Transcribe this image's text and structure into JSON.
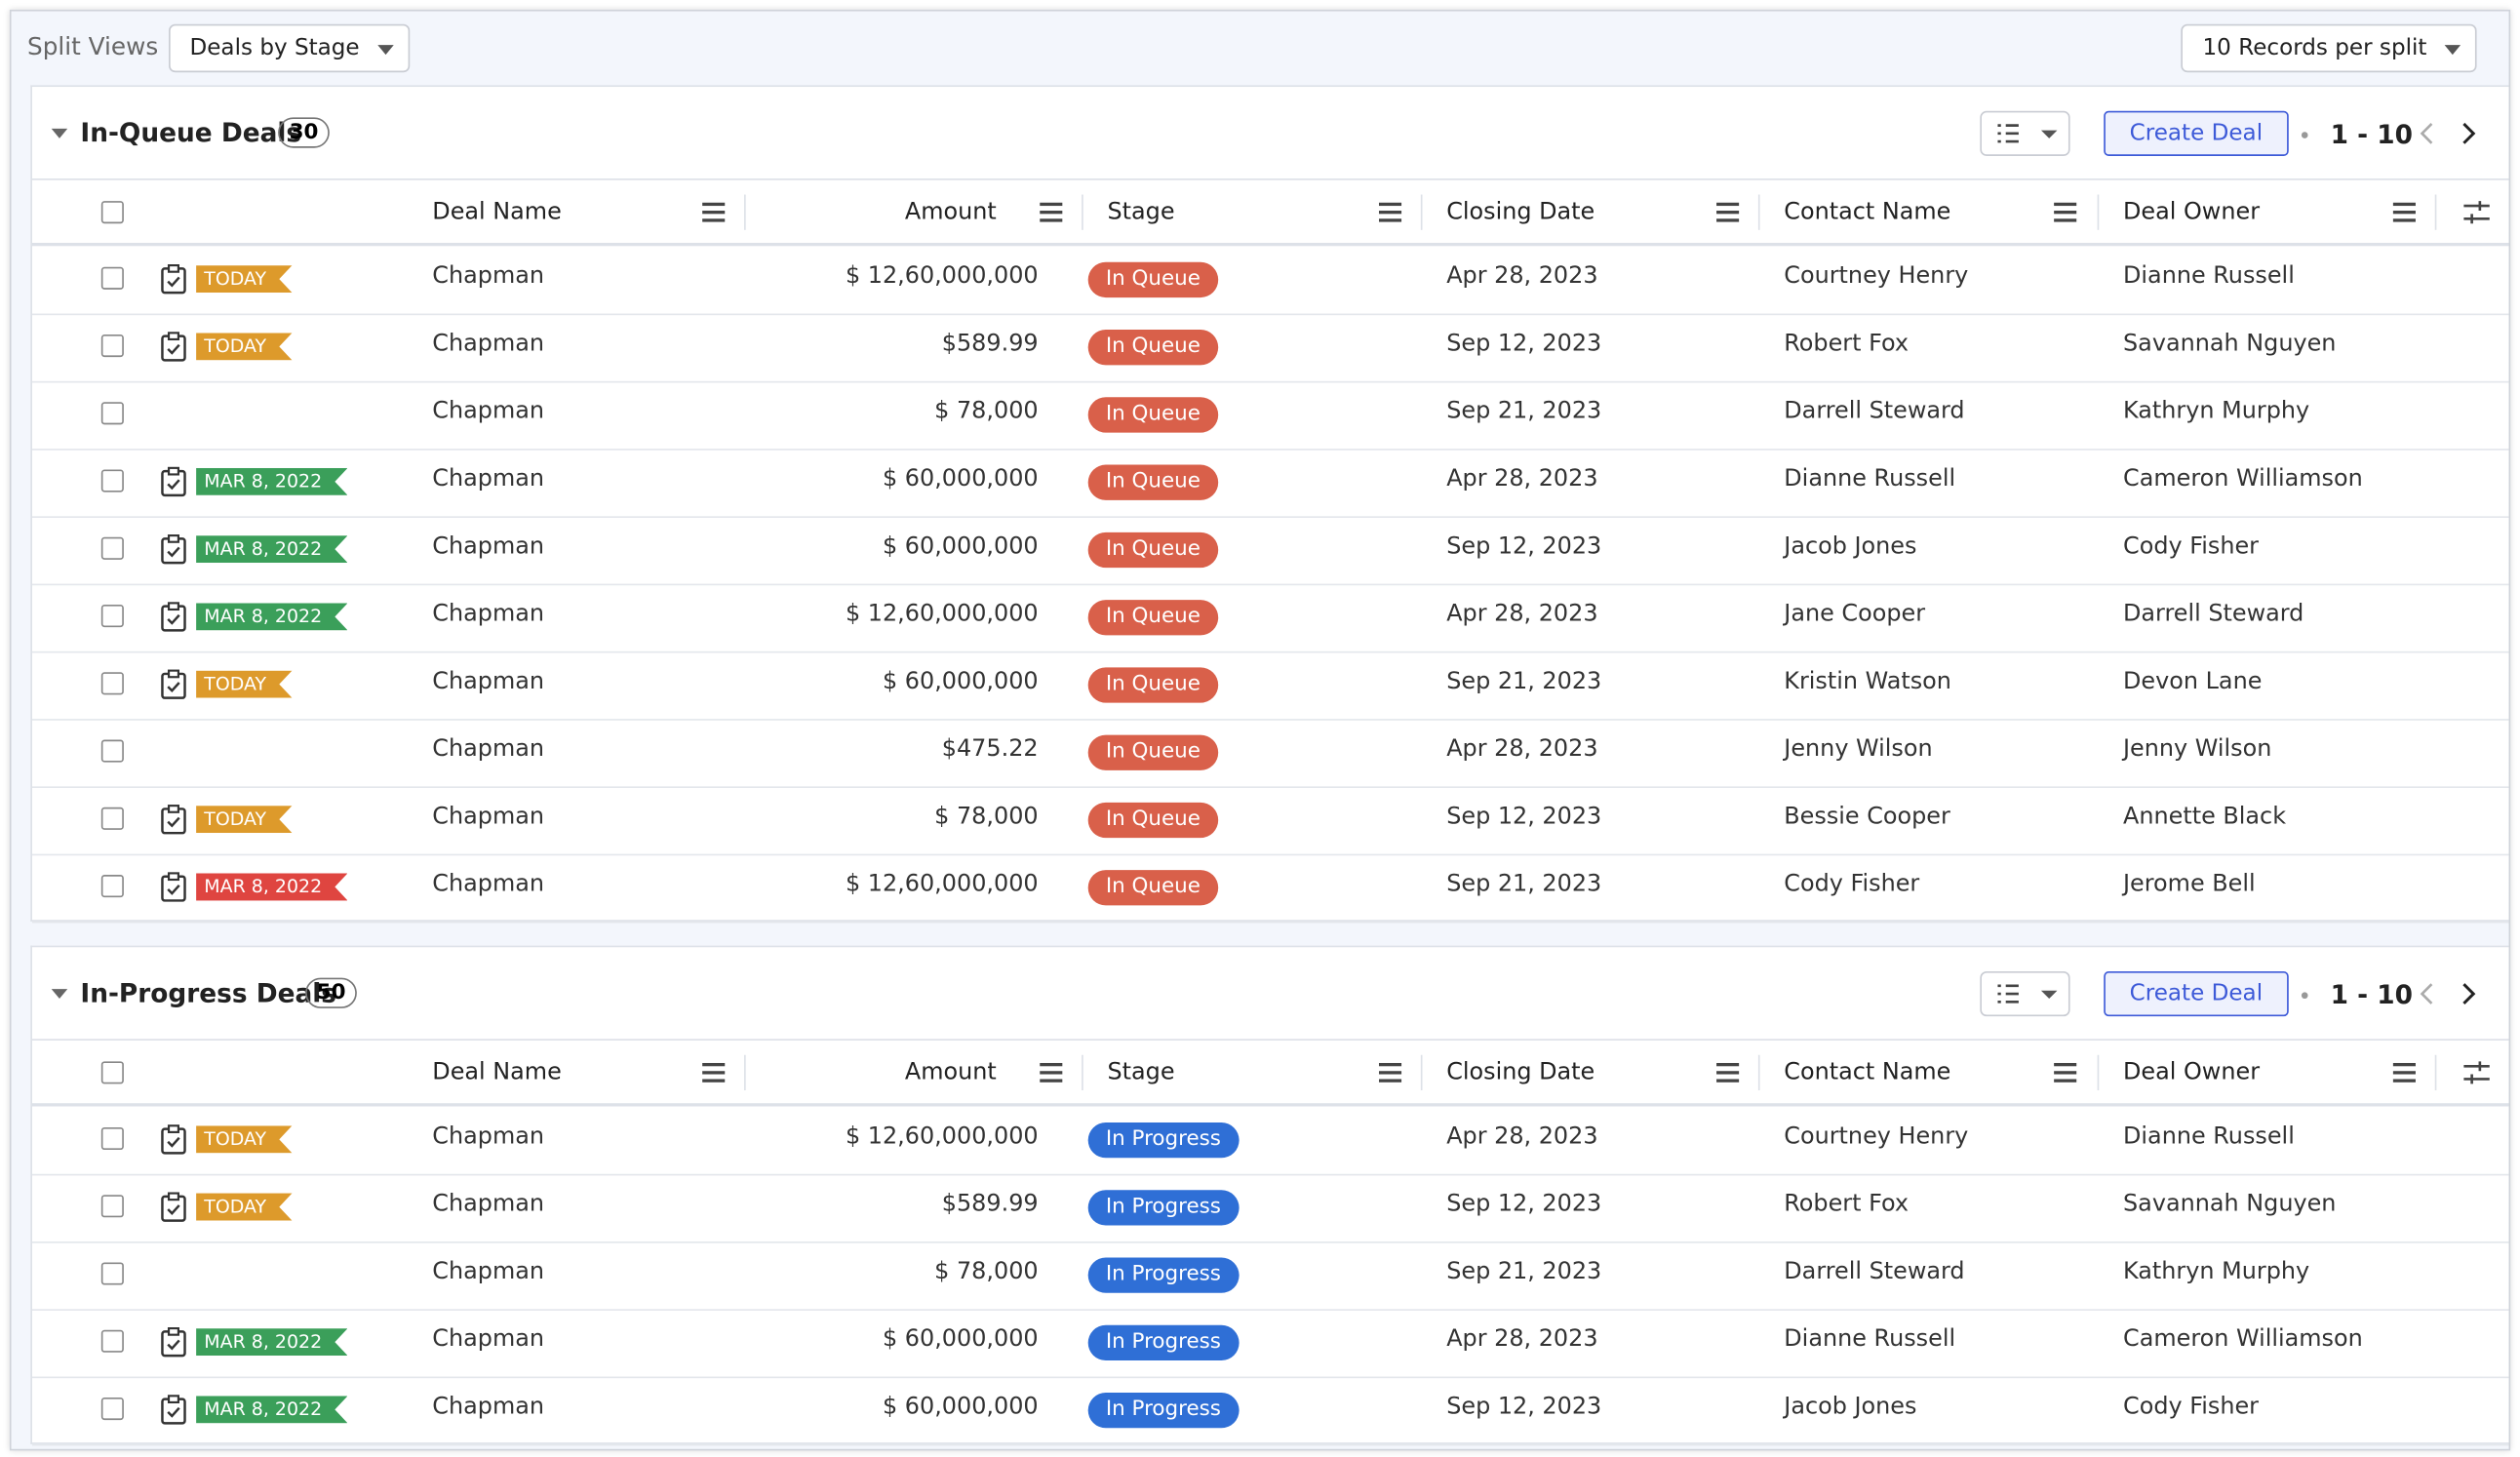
{
  "toolbar": {
    "label": "Split Views",
    "view": "Deals by Stage",
    "per_split": "10 Records per split"
  },
  "columns": [
    "Deal Name",
    "Amount",
    "Stage",
    "Closing Date",
    "Contact Name",
    "Deal Owner"
  ],
  "sections": [
    {
      "title": "In-Queue Deals",
      "count": "30",
      "button": "Create Deal",
      "pagination": "1 - 10",
      "stage_color": "#d9604a",
      "rows": [
        {
          "tag": {
            "text": "TODAY",
            "color": "#dd9a2b"
          },
          "cells": [
            "Chapman",
            "$ 12,60,000,000",
            "In Queue",
            "Apr 28, 2023",
            "Courtney Henry",
            "Dianne Russell"
          ]
        },
        {
          "tag": {
            "text": "TODAY",
            "color": "#dd9a2b"
          },
          "cells": [
            "Chapman",
            "$589.99",
            "In Queue",
            "Sep 12, 2023",
            "Robert Fox",
            "Savannah Nguyen"
          ]
        },
        {
          "cells": [
            "Chapman",
            "$ 78,000",
            "In Queue",
            "Sep 21, 2023",
            "Darrell Steward",
            "Kathryn Murphy"
          ]
        },
        {
          "tag": {
            "text": "MAR 8, 2022",
            "color": "#3b9f5a"
          },
          "cells": [
            "Chapman",
            "$ 60,000,000",
            "In Queue",
            "Apr 28, 2023",
            "Dianne Russell",
            "Cameron Williamson"
          ]
        },
        {
          "tag": {
            "text": "MAR 8, 2022",
            "color": "#3b9f5a"
          },
          "cells": [
            "Chapman",
            "$ 60,000,000",
            "In Queue",
            "Sep 12, 2023",
            "Jacob Jones",
            "Cody Fisher"
          ]
        },
        {
          "tag": {
            "text": "MAR 8, 2022",
            "color": "#3b9f5a"
          },
          "cells": [
            "Chapman",
            "$ 12,60,000,000",
            "In Queue",
            "Apr 28, 2023",
            "Jane Cooper",
            "Darrell Steward"
          ]
        },
        {
          "tag": {
            "text": "TODAY",
            "color": "#dd9a2b"
          },
          "cells": [
            "Chapman",
            "$ 60,000,000",
            "In Queue",
            "Sep 21, 2023",
            "Kristin Watson",
            "Devon Lane"
          ]
        },
        {
          "cells": [
            "Chapman",
            "$475.22",
            "In Queue",
            "Apr 28, 2023",
            "Jenny Wilson",
            "Jenny Wilson"
          ]
        },
        {
          "tag": {
            "text": "TODAY",
            "color": "#dd9a2b"
          },
          "cells": [
            "Chapman",
            "$ 78,000",
            "In Queue",
            "Sep 12, 2023",
            "Bessie Cooper",
            "Annette Black"
          ]
        },
        {
          "tag": {
            "text": "MAR 8, 2022",
            "color": "#df4540"
          },
          "cells": [
            "Chapman",
            "$ 12,60,000,000",
            "In Queue",
            "Sep 21, 2023",
            "Cody Fisher",
            "Jerome Bell"
          ]
        }
      ]
    },
    {
      "title": "In-Progress Deals",
      "count": "50",
      "button": "Create Deal",
      "pagination": "1 - 10",
      "stage_color": "#2f6fd6",
      "rows": [
        {
          "tag": {
            "text": "TODAY",
            "color": "#dd9a2b"
          },
          "cells": [
            "Chapman",
            "$ 12,60,000,000",
            "In Progress",
            "Apr 28, 2023",
            "Courtney Henry",
            "Dianne Russell"
          ]
        },
        {
          "tag": {
            "text": "TODAY",
            "color": "#dd9a2b"
          },
          "cells": [
            "Chapman",
            "$589.99",
            "In Progress",
            "Sep 12, 2023",
            "Robert Fox",
            "Savannah Nguyen"
          ]
        },
        {
          "cells": [
            "Chapman",
            "$ 78,000",
            "In Progress",
            "Sep 21, 2023",
            "Darrell Steward",
            "Kathryn Murphy"
          ]
        },
        {
          "tag": {
            "text": "MAR 8, 2022",
            "color": "#3b9f5a"
          },
          "cells": [
            "Chapman",
            "$ 60,000,000",
            "In Progress",
            "Apr 28, 2023",
            "Dianne Russell",
            "Cameron Williamson"
          ]
        },
        {
          "tag": {
            "text": "MAR 8, 2022",
            "color": "#3b9f5a"
          },
          "cells": [
            "Chapman",
            "$ 60,000,000",
            "In Progress",
            "Sep 12, 2023",
            "Jacob Jones",
            "Cody Fisher"
          ]
        }
      ]
    }
  ]
}
